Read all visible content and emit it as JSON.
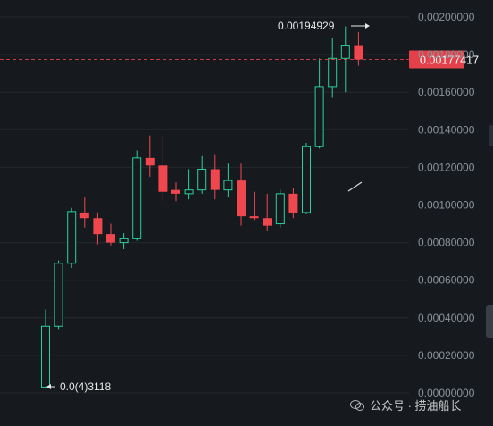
{
  "chart_data": {
    "type": "candlestick",
    "price_axis": {
      "ticks": [
        "0.00200000",
        "0.00180000",
        "0.00160000",
        "0.00140000",
        "0.00120000",
        "0.00100000",
        "0.00080000",
        "0.00060000",
        "0.00040000",
        "0.00020000",
        "0.00000000"
      ],
      "values": [
        0.002,
        0.0018,
        0.0016,
        0.0014,
        0.0012,
        0.001,
        0.0008,
        0.0006,
        0.0004,
        0.0002,
        0.0
      ],
      "range": [
        0.0,
        0.00206
      ]
    },
    "current_price": "0.00177417",
    "current_price_value": 0.00177417,
    "high_label": "0.00194929",
    "low_label": "0.0(4)3118",
    "colors": {
      "up": "#2bd09a",
      "down": "#f0474f",
      "background": "#161a1e",
      "grid": "#24282d",
      "axis_text": "#8b929a",
      "price_tag": "#e3414a"
    },
    "candles": [
      {
        "o": 3.12e-05,
        "h": 0.000445,
        "l": 3.12e-05,
        "c": 0.000355
      },
      {
        "o": 0.000355,
        "h": 0.000705,
        "l": 0.00034,
        "c": 0.00069
      },
      {
        "o": 0.00069,
        "h": 0.000985,
        "l": 0.000665,
        "c": 0.000965
      },
      {
        "o": 0.00096,
        "h": 0.00104,
        "l": 0.00088,
        "c": 0.00093
      },
      {
        "o": 0.00093,
        "h": 0.00096,
        "l": 0.00079,
        "c": 0.000845
      },
      {
        "o": 0.000845,
        "h": 0.0009,
        "l": 0.000785,
        "c": 0.0008
      },
      {
        "o": 0.0008,
        "h": 0.00085,
        "l": 0.000765,
        "c": 0.00082
      },
      {
        "o": 0.00082,
        "h": 0.00129,
        "l": 0.00081,
        "c": 0.00125
      },
      {
        "o": 0.00125,
        "h": 0.00137,
        "l": 0.00115,
        "c": 0.00121
      },
      {
        "o": 0.00121,
        "h": 0.00137,
        "l": 0.00102,
        "c": 0.00107
      },
      {
        "o": 0.00108,
        "h": 0.00112,
        "l": 0.00102,
        "c": 0.00106
      },
      {
        "o": 0.00106,
        "h": 0.00119,
        "l": 0.00103,
        "c": 0.00108
      },
      {
        "o": 0.00108,
        "h": 0.00126,
        "l": 0.00106,
        "c": 0.00119
      },
      {
        "o": 0.00119,
        "h": 0.00127,
        "l": 0.00103,
        "c": 0.00108
      },
      {
        "o": 0.00108,
        "h": 0.00122,
        "l": 0.00104,
        "c": 0.00113
      },
      {
        "o": 0.00113,
        "h": 0.00122,
        "l": 0.00089,
        "c": 0.00094
      },
      {
        "o": 0.00094,
        "h": 0.00107,
        "l": 0.00092,
        "c": 0.00093
      },
      {
        "o": 0.00093,
        "h": 0.00106,
        "l": 0.00086,
        "c": 0.00089
      },
      {
        "o": 0.0009,
        "h": 0.00108,
        "l": 0.00088,
        "c": 0.00106
      },
      {
        "o": 0.00106,
        "h": 0.00109,
        "l": 0.00093,
        "c": 0.00096
      },
      {
        "o": 0.00096,
        "h": 0.00133,
        "l": 0.00095,
        "c": 0.00131
      },
      {
        "o": 0.00131,
        "h": 0.00178,
        "l": 0.0013,
        "c": 0.00163
      },
      {
        "o": 0.00163,
        "h": 0.00189,
        "l": 0.00157,
        "c": 0.00178
      },
      {
        "o": 0.00178,
        "h": 0.00195,
        "l": 0.0016,
        "c": 0.00185
      },
      {
        "o": 0.00185,
        "h": 0.00192,
        "l": 0.00174,
        "c": 0.00177417
      }
    ]
  },
  "watermark": {
    "text": "公众号 · 捞油船长",
    "icon": "wechat-icon"
  }
}
